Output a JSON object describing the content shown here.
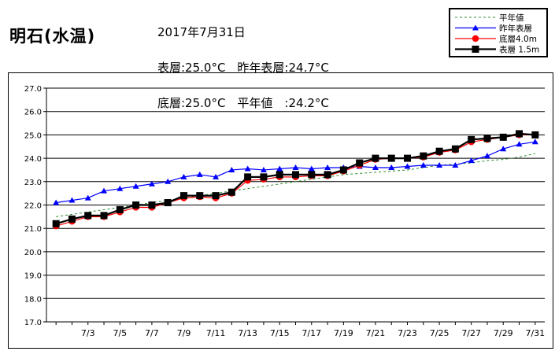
{
  "header": {
    "station": "明石(水温)",
    "date": "2017年7月31日",
    "line1": "表層:25.0°C　昨年表層:24.7°C",
    "line2": "底層:25.0°C　平年値　:24.2°C"
  },
  "colors": {
    "normal": "#2e8b2e",
    "last_year": "#0000ff",
    "bottom": "#ff0000",
    "surface": "#000000"
  },
  "chart_data": {
    "type": "line",
    "title": "",
    "xlabel": "",
    "ylabel": "",
    "ylim": [
      17.0,
      27.0
    ],
    "yticks": [
      "17.0",
      "18.0",
      "19.0",
      "20.0",
      "21.0",
      "22.0",
      "23.0",
      "24.0",
      "25.0",
      "26.0",
      "27.0"
    ],
    "xtick_labels": [
      "7/3",
      "7/5",
      "7/7",
      "7/9",
      "7/11",
      "7/13",
      "7/15",
      "7/17",
      "7/19",
      "7/21",
      "7/23",
      "7/25",
      "7/27",
      "7/29",
      "7/31"
    ],
    "grid": "horizontal",
    "legend": "top-right",
    "x": [
      1,
      2,
      3,
      4,
      5,
      6,
      7,
      8,
      9,
      10,
      11,
      12,
      13,
      14,
      15,
      16,
      17,
      18,
      19,
      20,
      21,
      22,
      23,
      24,
      25,
      26,
      27,
      28,
      29,
      30,
      31
    ],
    "series": [
      {
        "name": "平年値",
        "style": "dashed",
        "marker": "none",
        "values": [
          21.5,
          21.6,
          21.7,
          21.8,
          21.9,
          22.0,
          22.1,
          22.2,
          22.3,
          22.4,
          22.5,
          22.6,
          22.7,
          22.8,
          22.9,
          23.0,
          23.1,
          23.2,
          23.3,
          23.35,
          23.4,
          23.45,
          23.5,
          23.6,
          23.7,
          23.75,
          23.8,
          23.9,
          23.95,
          24.05,
          24.2
        ]
      },
      {
        "name": "昨年表層",
        "style": "solid",
        "marker": "triangle",
        "values": [
          22.1,
          22.2,
          22.3,
          22.6,
          22.7,
          22.8,
          22.9,
          23.0,
          23.2,
          23.3,
          23.2,
          23.5,
          23.55,
          23.5,
          23.55,
          23.6,
          23.55,
          23.6,
          23.6,
          23.65,
          23.6,
          23.6,
          23.65,
          23.7,
          23.7,
          23.7,
          23.9,
          24.1,
          24.4,
          24.6,
          24.7
        ]
      },
      {
        "name": "底層4.0m",
        "style": "solid",
        "marker": "circle",
        "values": [
          21.1,
          21.3,
          21.5,
          21.5,
          21.7,
          21.9,
          21.9,
          22.1,
          22.3,
          22.35,
          22.3,
          22.5,
          23.05,
          23.1,
          23.2,
          23.2,
          23.25,
          23.25,
          23.45,
          23.7,
          23.95,
          24.0,
          24.0,
          24.05,
          24.25,
          24.35,
          24.7,
          24.8,
          24.9,
          25.0,
          25.0
        ]
      },
      {
        "name": "表層 1.5m",
        "style": "solid-thick",
        "marker": "square",
        "values": [
          21.2,
          21.4,
          21.55,
          21.55,
          21.8,
          22.0,
          22.0,
          22.1,
          22.4,
          22.4,
          22.4,
          22.55,
          23.2,
          23.2,
          23.3,
          23.3,
          23.3,
          23.3,
          23.5,
          23.8,
          24.0,
          24.0,
          24.0,
          24.1,
          24.3,
          24.4,
          24.8,
          24.85,
          24.9,
          25.05,
          25.0
        ]
      }
    ]
  }
}
